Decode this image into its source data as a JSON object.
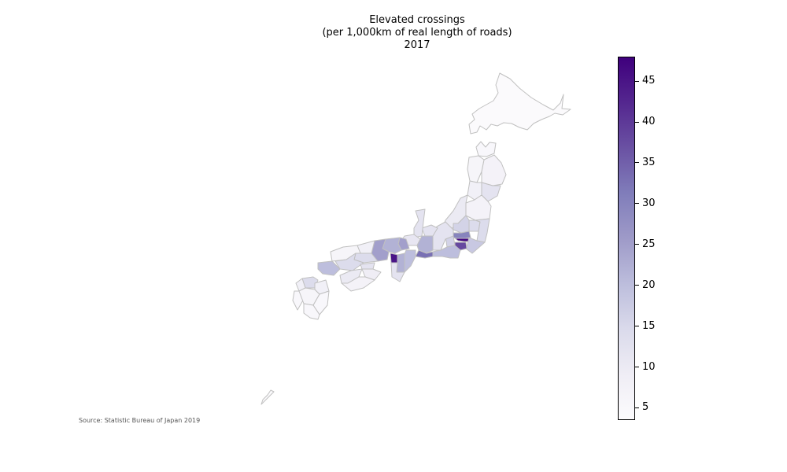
{
  "title_lines": [
    "Elevated crossings",
    "(per 1,000km of real length of roads)",
    "2017"
  ],
  "source": "Source: Statistic Bureau of Japan 2019",
  "colorbar": {
    "min": 3.5,
    "max": 48,
    "ticks": [
      "5",
      "10",
      "15",
      "20",
      "25",
      "30",
      "35",
      "40",
      "45"
    ],
    "colors": [
      "#fcfbfd",
      "#efedf5",
      "#dadaeb",
      "#bcbddc",
      "#9e9ac8",
      "#807dba",
      "#6a51a3",
      "#54278f",
      "#3f007d"
    ]
  },
  "map": {
    "border_color": "#c0c0c0",
    "regions": [
      {
        "name": "Hokkaido",
        "value": 4
      },
      {
        "name": "Aomori",
        "value": 5
      },
      {
        "name": "Iwate",
        "value": 7
      },
      {
        "name": "Akita",
        "value": 6
      },
      {
        "name": "Miyagi",
        "value": 12
      },
      {
        "name": "Yamagata",
        "value": 8
      },
      {
        "name": "Fukushima",
        "value": 7
      },
      {
        "name": "Niigata",
        "value": 10
      },
      {
        "name": "Tochigi",
        "value": 14
      },
      {
        "name": "Ibaraki",
        "value": 14
      },
      {
        "name": "Gunma",
        "value": 16
      },
      {
        "name": "Saitama",
        "value": 30
      },
      {
        "name": "Tokyo",
        "value": 47
      },
      {
        "name": "Chiba",
        "value": 18
      },
      {
        "name": "Kanagawa",
        "value": 38
      },
      {
        "name": "Yamanashi",
        "value": 16
      },
      {
        "name": "Shizuoka",
        "value": 20
      },
      {
        "name": "Nagano",
        "value": 12
      },
      {
        "name": "Toyama",
        "value": 12
      },
      {
        "name": "Ishikawa",
        "value": 12
      },
      {
        "name": "Fukui",
        "value": 11
      },
      {
        "name": "Gifu",
        "value": 22
      },
      {
        "name": "Aichi",
        "value": 33
      },
      {
        "name": "Mie",
        "value": 20
      },
      {
        "name": "Shiga",
        "value": 25
      },
      {
        "name": "Kyoto",
        "value": 22
      },
      {
        "name": "Hyogo",
        "value": 25
      },
      {
        "name": "Osaka",
        "value": 45
      },
      {
        "name": "Nara",
        "value": 22
      },
      {
        "name": "Wakayama",
        "value": 12
      },
      {
        "name": "Tottori",
        "value": 8
      },
      {
        "name": "Shimane",
        "value": 6
      },
      {
        "name": "Okayama",
        "value": 14
      },
      {
        "name": "Hiroshima",
        "value": 14
      },
      {
        "name": "Yamaguchi",
        "value": 20
      },
      {
        "name": "Kagawa",
        "value": 12
      },
      {
        "name": "Ehime",
        "value": 10
      },
      {
        "name": "Tokushima",
        "value": 9
      },
      {
        "name": "Kochi",
        "value": 7
      },
      {
        "name": "Fukuoka",
        "value": 14
      },
      {
        "name": "Saga",
        "value": 8
      },
      {
        "name": "Nagasaki",
        "value": 5
      },
      {
        "name": "Kumamoto",
        "value": 6
      },
      {
        "name": "Oita",
        "value": 8
      },
      {
        "name": "Miyazaki",
        "value": 5
      },
      {
        "name": "Kagoshima",
        "value": 5
      },
      {
        "name": "Okinawa",
        "value": 4
      }
    ]
  }
}
